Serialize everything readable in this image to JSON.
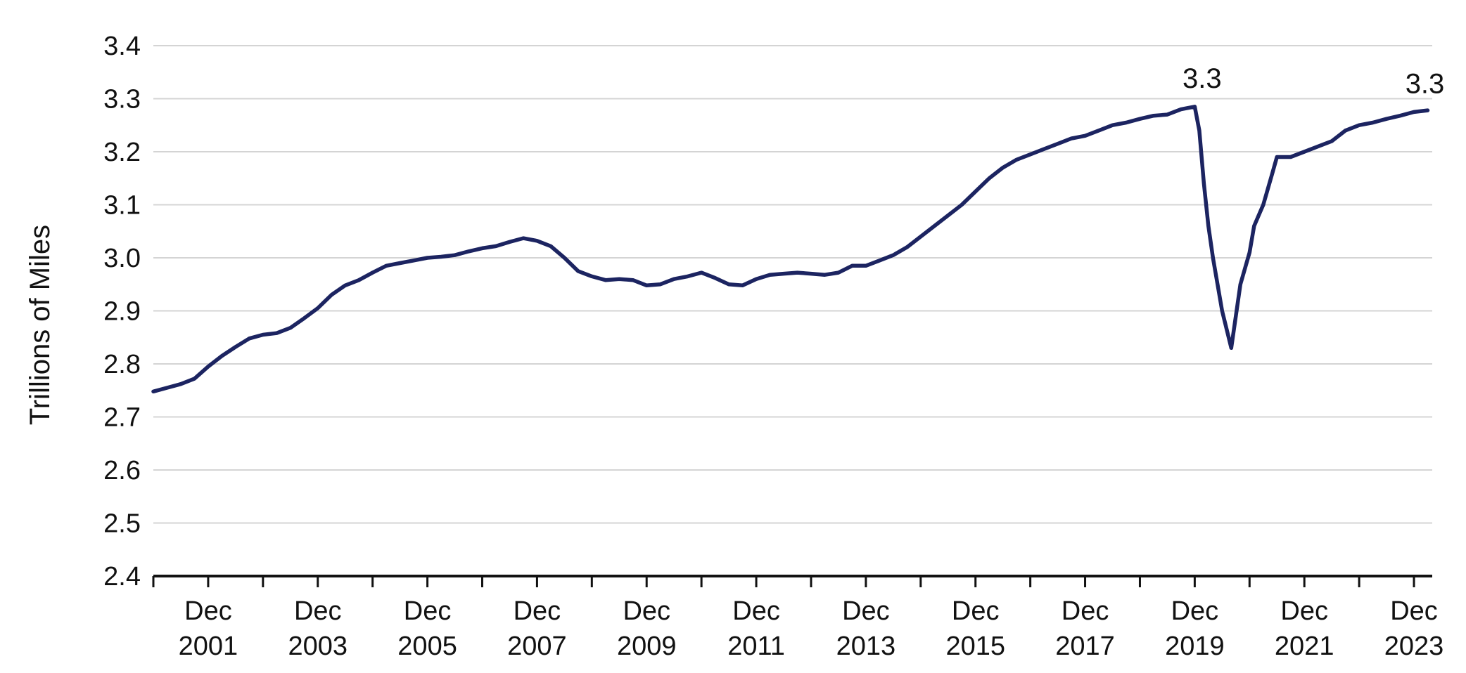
{
  "chart_data": {
    "type": "line",
    "title": "",
    "xlabel": "",
    "ylabel": "Trillions of Miles",
    "ylim": [
      2.4,
      3.4
    ],
    "yticks": [
      "2.4",
      "2.5",
      "2.6",
      "2.7",
      "2.8",
      "2.9",
      "3.0",
      "3.1",
      "3.2",
      "3.3",
      "3.4"
    ],
    "xlim": [
      "2000-12",
      "2024-04"
    ],
    "xticks": [
      {
        "date": "2001-12",
        "line1": "Dec",
        "line2": "2001"
      },
      {
        "date": "2003-12",
        "line1": "Dec",
        "line2": "2003"
      },
      {
        "date": "2005-12",
        "line1": "Dec",
        "line2": "2005"
      },
      {
        "date": "2007-12",
        "line1": "Dec",
        "line2": "2007"
      },
      {
        "date": "2009-12",
        "line1": "Dec",
        "line2": "2009"
      },
      {
        "date": "2011-12",
        "line1": "Dec",
        "line2": "2011"
      },
      {
        "date": "2013-12",
        "line1": "Dec",
        "line2": "2013"
      },
      {
        "date": "2015-12",
        "line1": "Dec",
        "line2": "2015"
      },
      {
        "date": "2017-12",
        "line1": "Dec",
        "line2": "2017"
      },
      {
        "date": "2019-12",
        "line1": "Dec",
        "line2": "2019"
      },
      {
        "date": "2021-12",
        "line1": "Dec",
        "line2": "2021"
      },
      {
        "date": "2023-12",
        "line1": "Dec",
        "line2": "2023"
      }
    ],
    "grid": true,
    "line_color": "#1c2461",
    "grid_color": "#d4d4d4",
    "series": [
      {
        "x": [
          "2000-12",
          "2001-03",
          "2001-06",
          "2001-09",
          "2001-12",
          "2002-03",
          "2002-06",
          "2002-09",
          "2002-12",
          "2003-03",
          "2003-06",
          "2003-09",
          "2003-12",
          "2004-03",
          "2004-06",
          "2004-09",
          "2004-12",
          "2005-03",
          "2005-06",
          "2005-09",
          "2005-12",
          "2006-03",
          "2006-06",
          "2006-09",
          "2006-12",
          "2007-03",
          "2007-06",
          "2007-09",
          "2007-12",
          "2008-03",
          "2008-06",
          "2008-09",
          "2008-12",
          "2009-03",
          "2009-06",
          "2009-09",
          "2009-12",
          "2010-03",
          "2010-06",
          "2010-09",
          "2010-12",
          "2011-03",
          "2011-06",
          "2011-09",
          "2011-12",
          "2012-03",
          "2012-06",
          "2012-09",
          "2012-12",
          "2013-03",
          "2013-06",
          "2013-09",
          "2013-12",
          "2014-03",
          "2014-06",
          "2014-09",
          "2014-12",
          "2015-03",
          "2015-06",
          "2015-09",
          "2015-12",
          "2016-03",
          "2016-06",
          "2016-09",
          "2016-12",
          "2017-03",
          "2017-06",
          "2017-09",
          "2017-12",
          "2018-03",
          "2018-06",
          "2018-09",
          "2018-12",
          "2019-03",
          "2019-06",
          "2019-09",
          "2019-12",
          "2020-01",
          "2020-02",
          "2020-03",
          "2020-04",
          "2020-05",
          "2020-06",
          "2020-08",
          "2020-10",
          "2020-12",
          "2021-01",
          "2021-02",
          "2021-03",
          "2021-04",
          "2021-05",
          "2021-06",
          "2021-09",
          "2021-12",
          "2022-03",
          "2022-06",
          "2022-09",
          "2022-12",
          "2023-03",
          "2023-06",
          "2023-09",
          "2023-12",
          "2024-03"
        ],
        "y": [
          2.748,
          2.755,
          2.762,
          2.772,
          2.795,
          2.815,
          2.832,
          2.848,
          2.855,
          2.858,
          2.868,
          2.886,
          2.905,
          2.93,
          2.948,
          2.958,
          2.972,
          2.985,
          2.99,
          2.995,
          3.0,
          3.002,
          3.005,
          3.012,
          3.018,
          3.022,
          3.03,
          3.037,
          3.032,
          3.022,
          3.0,
          2.975,
          2.965,
          2.958,
          2.96,
          2.958,
          2.948,
          2.95,
          2.96,
          2.965,
          2.972,
          2.962,
          2.95,
          2.948,
          2.96,
          2.968,
          2.97,
          2.972,
          2.97,
          2.968,
          2.972,
          2.985,
          2.985,
          2.995,
          3.005,
          3.02,
          3.04,
          3.06,
          3.08,
          3.1,
          3.125,
          3.15,
          3.17,
          3.185,
          3.195,
          3.205,
          3.215,
          3.225,
          3.23,
          3.24,
          3.25,
          3.255,
          3.262,
          3.268,
          3.27,
          3.28,
          3.285,
          3.24,
          3.14,
          3.06,
          3.0,
          2.95,
          2.9,
          2.83,
          2.95,
          3.01,
          3.06,
          3.08,
          3.1,
          3.13,
          3.16,
          3.19,
          3.19,
          3.2,
          3.21,
          3.22,
          3.24,
          3.25,
          3.255,
          3.262,
          3.268,
          3.275,
          3.278
        ]
      }
    ],
    "annotations": [
      {
        "text": "3.3",
        "x": "2020-01",
        "y": 3.285
      },
      {
        "text": "3.3",
        "x": "2024-03",
        "y": 3.275
      }
    ]
  }
}
